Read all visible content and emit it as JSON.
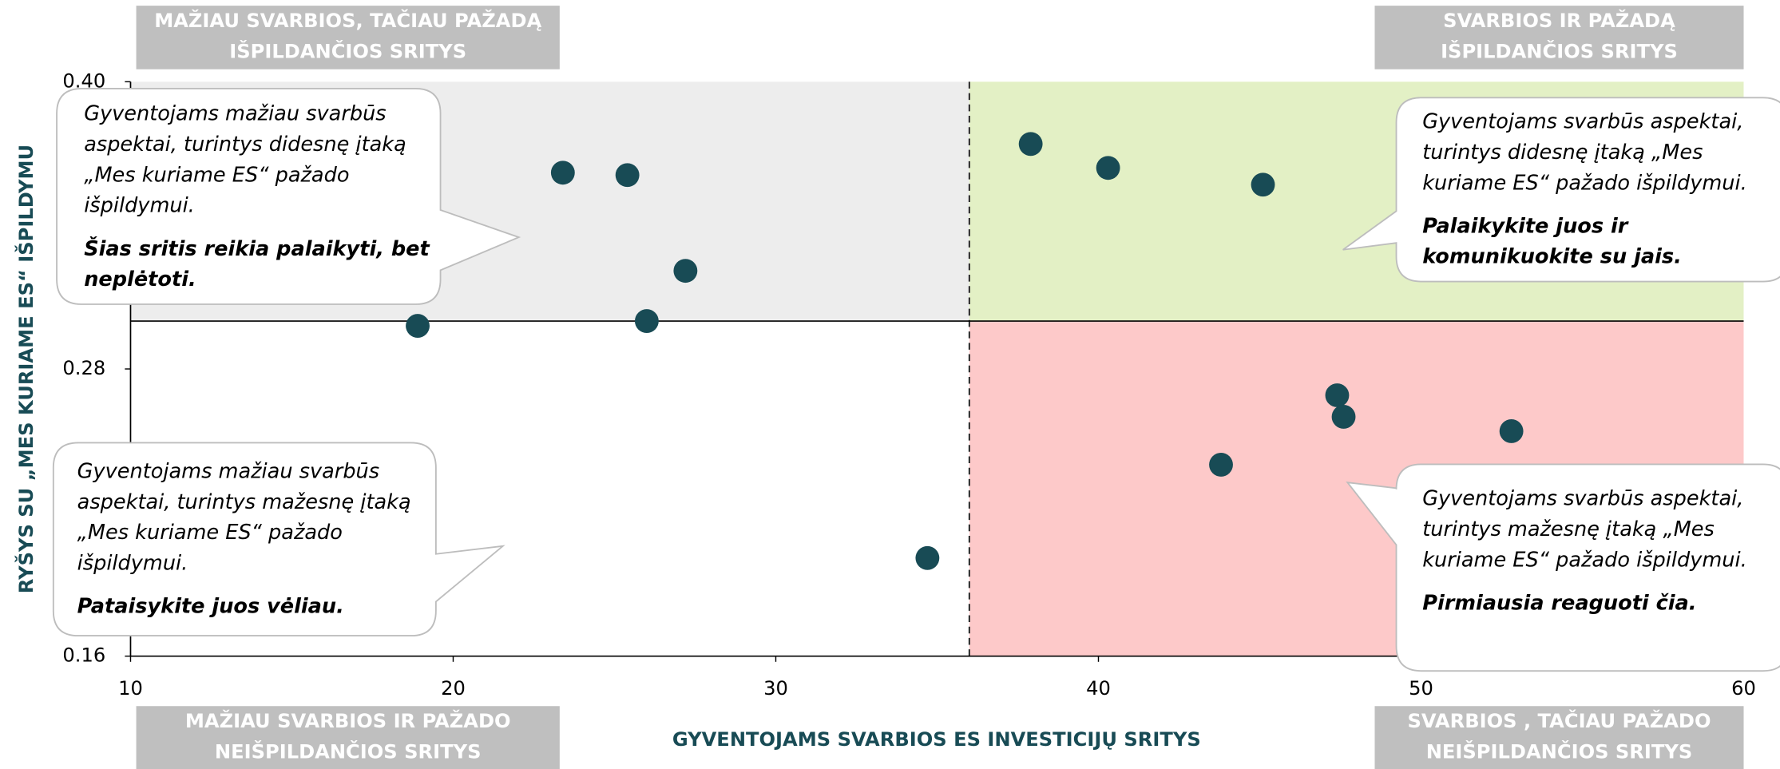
{
  "chart_data": {
    "type": "scatter",
    "x_label": "GYVENTOJAMS SVARBIOS ES INVESTICIJŲ SRITYS",
    "y_label": "RYŠYS SU „MES KURIAME ES“ IŠPILDYMU",
    "xlim": [
      10,
      60
    ],
    "ylim": [
      0.16,
      0.4
    ],
    "xticks": [
      10,
      20,
      30,
      40,
      50,
      60
    ],
    "yticks": [
      0.16,
      0.28,
      {
        "value": 0.4,
        "label": "0.40"
      }
    ],
    "quadrant_split": {
      "x": 36,
      "y": 0.3
    },
    "color": "#184b55",
    "x": [
      18.9,
      23.4,
      25.4,
      27.2,
      26.0,
      34.7,
      37.9,
      40.3,
      45.1,
      47.4,
      47.6,
      52.8,
      43.8
    ],
    "y": [
      0.298,
      0.362,
      0.361,
      0.321,
      0.3,
      0.201,
      0.374,
      0.364,
      0.357,
      0.269,
      0.26,
      0.254,
      0.24
    ],
    "quadrant_labels": [
      [
        "MAŽIAU SVARBIOS, TAČIAU PAŽADĄ",
        "IŠPILDANČIOS SRITYS"
      ],
      [
        "SVARBIOS IR PAŽADĄ",
        "IŠPILDANČIOS SRITYS"
      ],
      [
        "MAŽIAU SVARBIOS IR PAŽADO",
        "NEIŠPILDANČIOS SRITYS"
      ],
      [
        "SVARBIOS , TAČIAU PAŽADO",
        "NEIŠPILDANČIOS SRITYS"
      ]
    ],
    "callouts": [
      {
        "text": [
          "Gyventojams mažiau svarbūs",
          "aspektai, turintys didesnę įtaką",
          "„Mes kuriame ES“ pažado",
          "išpildymui."
        ],
        "action": [
          "Šias sritis reikia palaikyti, bet",
          "neplėtoti."
        ]
      },
      {
        "text": [
          "Gyventojams svarbūs aspektai,",
          "turintys didesnę įtaką „Mes",
          "kuriame ES“ pažado išpildymui."
        ],
        "action": [
          "Palaikykite juos ir",
          "komunikuokite su jais."
        ]
      },
      {
        "text": [
          "Gyventojams mažiau svarbūs",
          "aspektai, turintys mažesnę įtaką",
          "„Mes kuriame ES“ pažado",
          "išpildymui."
        ],
        "action": [
          "Pataisykite juos vėliau."
        ]
      },
      {
        "text": [
          "Gyventojams svarbūs aspektai,",
          "turintys mažesnę įtaką „Mes",
          "kuriame ES“ pažado išpildymui."
        ],
        "action": [
          "Pirmiausia reaguoti čia."
        ]
      }
    ]
  }
}
